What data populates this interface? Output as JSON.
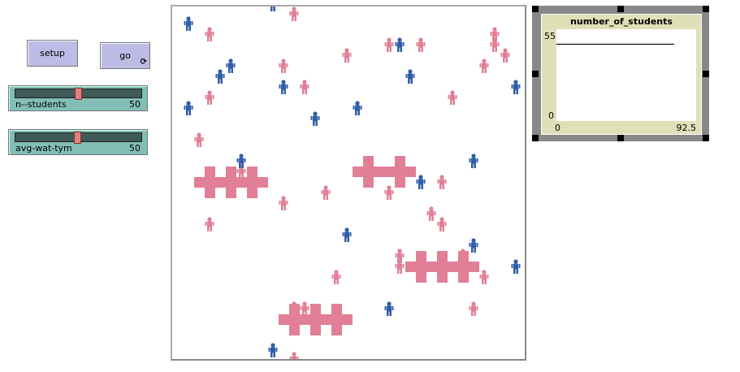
{
  "buttons": {
    "setup": "setup",
    "go": "go"
  },
  "sliders": [
    {
      "label": "n--students",
      "value": "50",
      "fraction": 0.5
    },
    {
      "label": "avg-wat-tym",
      "value": "50",
      "fraction": 0.5
    }
  ],
  "plot": {
    "title": "number_of_students",
    "y_max": "55",
    "y_min": "0",
    "x_min": "0",
    "x_max": "92.5"
  },
  "chart_data": {
    "type": "line",
    "title": "number_of_students",
    "xlim": [
      0,
      92.5
    ],
    "ylim": [
      0,
      55
    ],
    "series": [
      {
        "x": [
          0,
          78
        ],
        "y": [
          50,
          50
        ]
      }
    ]
  },
  "colors": {
    "male": "#2f5ea8",
    "female": "#e07f96",
    "wall": "#e07f96",
    "slider": "#82beb6",
    "button": "#bcbce6",
    "plot_bg": "#e0e0b8"
  }
}
